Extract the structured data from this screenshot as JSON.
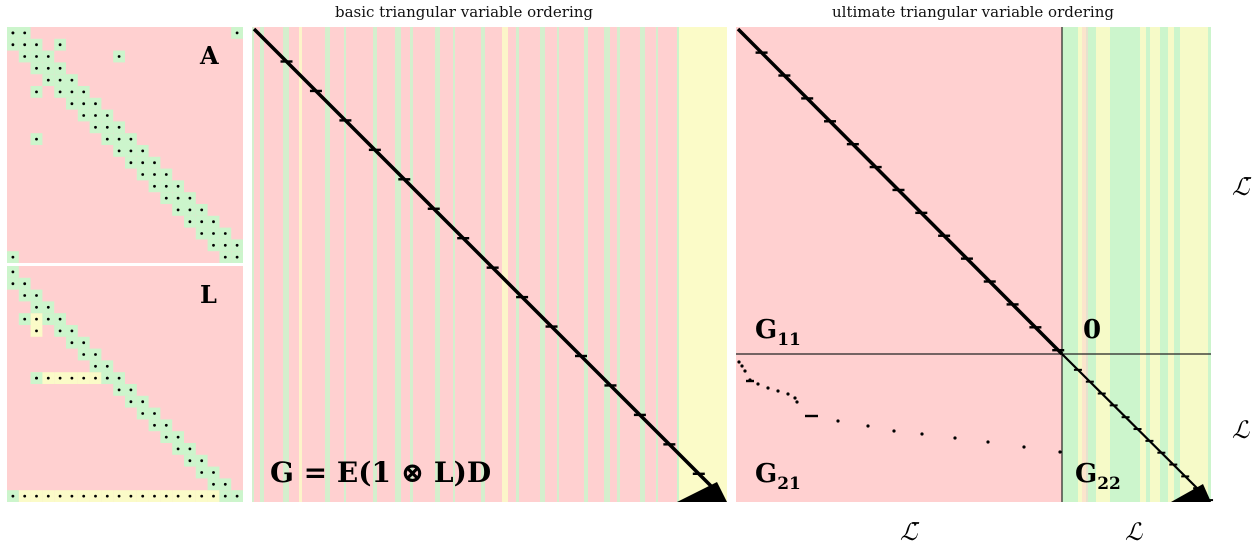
{
  "titles": {
    "middle": "basic triangular variable ordering",
    "right": "ultimate triangular variable ordering"
  },
  "panels": {
    "a_label": "A",
    "l_label": "L",
    "middle_formula": "G = E(1 ⊗ L)D"
  },
  "blocks": {
    "g11": {
      "base": "G",
      "sub": "11"
    },
    "g21": {
      "base": "G",
      "sub": "21"
    },
    "g22": {
      "base": "G",
      "sub": "22"
    },
    "zero": "0"
  },
  "axis_labels": {
    "right_top": "ℒ̄",
    "right_bottom": "ℒ",
    "bottom_left": "ℒ̄",
    "bottom_right": "ℒ"
  },
  "colors": {
    "pink": "#ffd0d0",
    "green": "#ccf5cc",
    "yellow": "#fbfbc8",
    "dot": "#000000",
    "line": "#222222"
  }
}
